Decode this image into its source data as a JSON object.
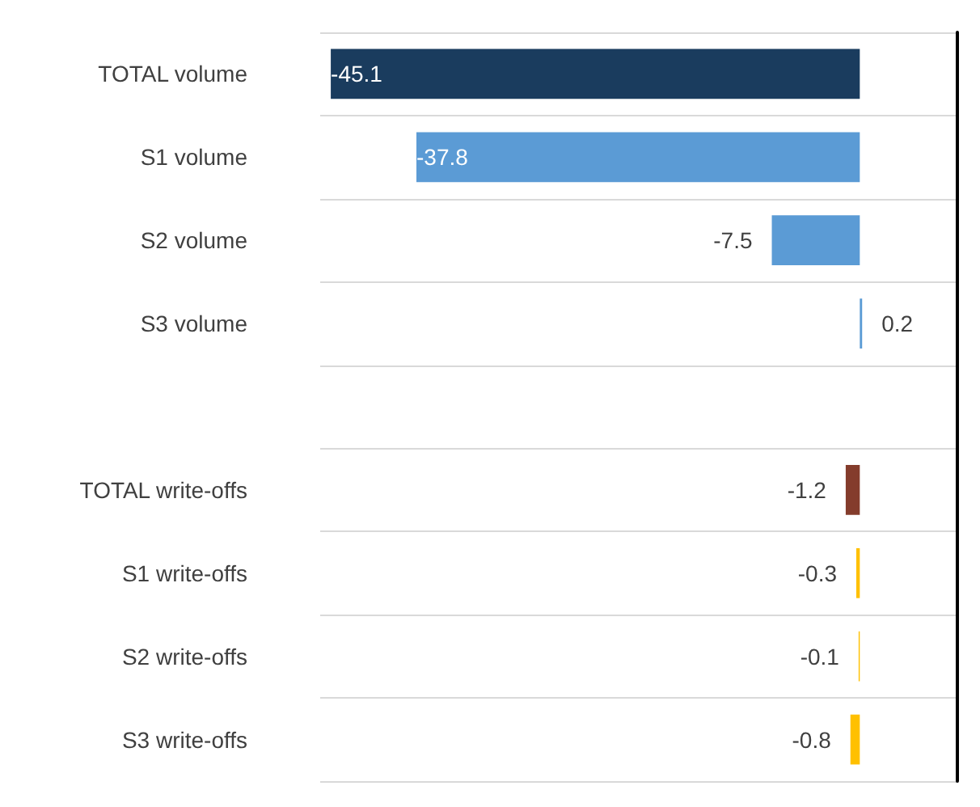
{
  "chart_data": {
    "type": "bar",
    "orientation": "horizontal",
    "categories": [
      "TOTAL volume",
      "S1 volume",
      "S2 volume",
      "S3 volume",
      null,
      "TOTAL write-offs",
      "S1 write-offs",
      "S2 write-offs",
      "S3 write-offs"
    ],
    "values": [
      -45.1,
      -37.8,
      -7.5,
      0.2,
      null,
      -1.2,
      -0.3,
      -0.1,
      -0.8
    ],
    "colors": [
      "#1a3c5e",
      "#5b9bd5",
      "#5b9bd5",
      "#5b9bd5",
      "#5b9bd5",
      "#843c2c",
      "#ffc000",
      "#ffc000",
      "#ffc000"
    ],
    "data_labels": true,
    "grid": "y"
  }
}
